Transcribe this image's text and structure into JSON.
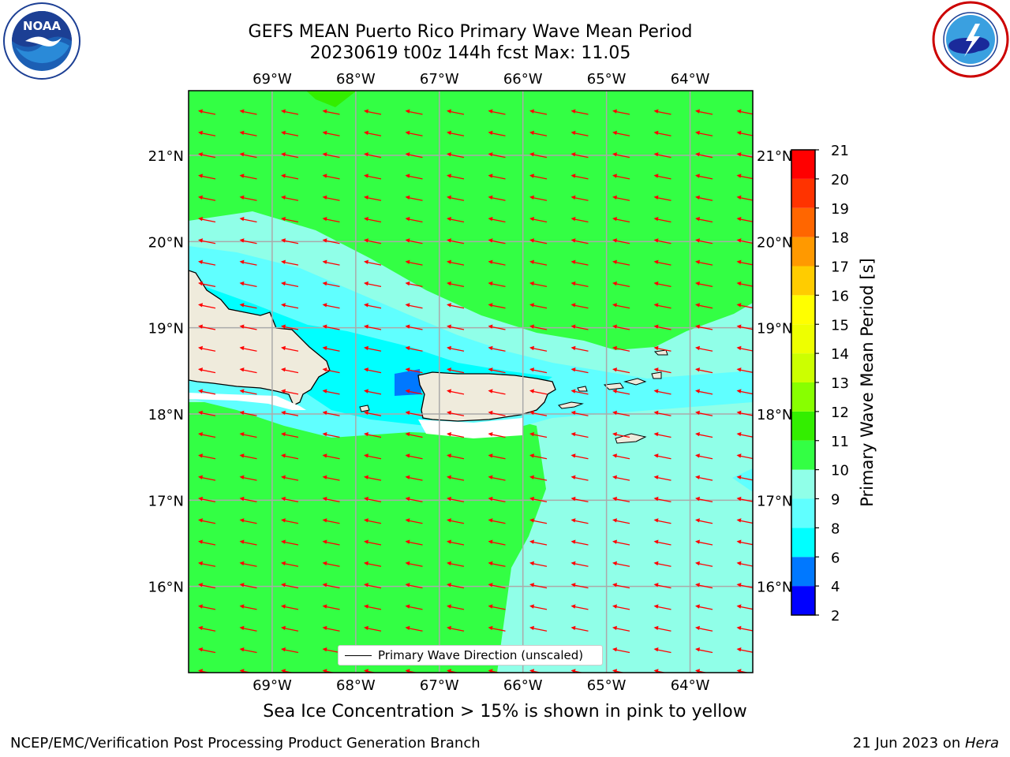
{
  "header": {
    "title_line1": "GEFS MEAN Puerto Rico Primary Wave Mean Period",
    "title_line2": "20230619 t00z 144h fcst   Max: 11.05"
  },
  "logos": {
    "left": {
      "icon": "noaa-logo-icon",
      "text": "NOAA"
    },
    "right": {
      "icon": "nws-logo-icon"
    }
  },
  "map": {
    "lon_labels": [
      "69°W",
      "68°W",
      "67°W",
      "66°W",
      "65°W",
      "64°W"
    ],
    "lat_labels": [
      "21°N",
      "20°N",
      "19°N",
      "18°N",
      "17°N",
      "16°N"
    ],
    "lon_range": [
      -70.0,
      -63.25
    ],
    "lat_range": [
      15.0,
      21.75
    ],
    "legend_label": "Primary Wave Direction (unscaled)",
    "arrow_color": "#ff0000",
    "land_color": "#efebdc"
  },
  "colorbar": {
    "label": "Primary Wave Mean Period [s]",
    "ticks": [
      "2",
      "4",
      "6",
      "8",
      "9",
      "10",
      "11",
      "12",
      "13",
      "14",
      "15",
      "16",
      "17",
      "18",
      "19",
      "20",
      "21"
    ],
    "colors": [
      "#0000ff",
      "#0078ff",
      "#00ffff",
      "#60ffff",
      "#90ffe8",
      "#33ff44",
      "#33ee00",
      "#88ff00",
      "#ccff00",
      "#eeff00",
      "#ffff00",
      "#ffcc00",
      "#ff9900",
      "#ff6600",
      "#ff3300",
      "#ff0000"
    ]
  },
  "captions": {
    "ice_note": "Sea Ice Concentration > 15% is shown in pink to yellow",
    "footer_left": "NCEP/EMC/Verification Post Processing Product Generation Branch",
    "footer_date": "21 Jun 2023 on ",
    "footer_host": "Hera"
  }
}
